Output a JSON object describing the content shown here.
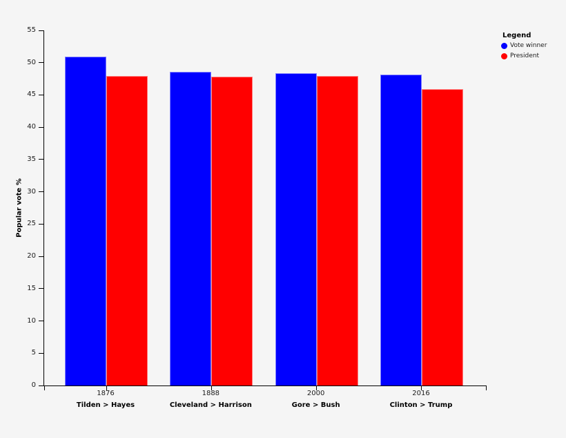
{
  "figure": {
    "background": "#f5f5f5",
    "ylabel": "Popular vote %"
  },
  "legend": {
    "title": "Legend",
    "items": [
      {
        "label": "Vote winner",
        "color": "#0000ff"
      },
      {
        "label": "President",
        "color": "#ff0000"
      }
    ]
  },
  "chart_data": {
    "type": "bar",
    "title": "",
    "xlabel": "",
    "ylabel": "Popular vote %",
    "categories": [
      "1876",
      "1888",
      "2000",
      "2016"
    ],
    "category_sublabels": [
      "Tilden > Hayes",
      "Cleveland > Harrison",
      "Gore > Bush",
      "Clinton > Trump"
    ],
    "series": [
      {
        "name": "Vote winner",
        "color": "#0000ff",
        "values": [
          50.9,
          48.6,
          48.4,
          48.2
        ]
      },
      {
        "name": "President",
        "color": "#ff0000",
        "values": [
          47.9,
          47.8,
          47.9,
          45.9
        ]
      }
    ],
    "ylim": [
      0,
      55
    ],
    "ytick_step": 5,
    "grid": false,
    "legend_position": "outside-top-right",
    "background": "#f5f5f5"
  }
}
